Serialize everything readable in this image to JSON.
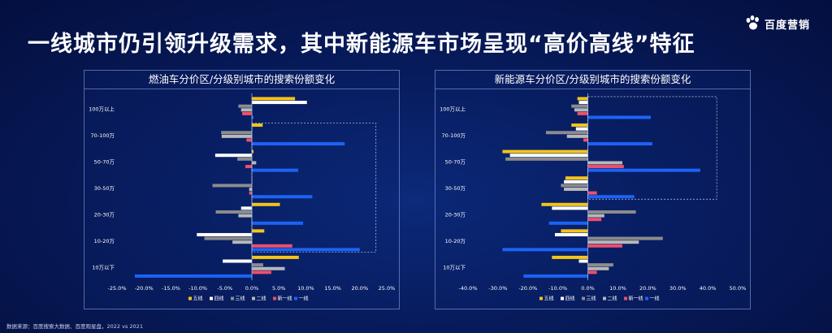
{
  "header": {
    "headline": "一线城市仍引领升级需求，其中新能源车市场呈现“高价高线”特征",
    "brand": "百度营销"
  },
  "footnote": "数据来源：百度搜索大数据、百度观星盘，2022 vs 2021",
  "colors": {
    "五线": "#f5c518",
    "四线": "#ffffff",
    "三线": "#8c8c8c",
    "二线": "#b8b8b8",
    "新一线": "#ef4f6b",
    "一线": "#1c63f5"
  },
  "chart_data": [
    {
      "type": "bar",
      "orientation": "horizontal",
      "title": "燃油车分价区/分级别城市的搜索份额变化",
      "categories": [
        "100万以上",
        "70-100万",
        "50-70万",
        "30-50万",
        "20-30万",
        "10-20万",
        "10万以下"
      ],
      "xlim": [
        -0.25,
        0.25
      ],
      "xticks": [
        "-25.0%",
        "-20.0%",
        "-15.0%",
        "-10.0%",
        "-5.0%",
        "0.0%",
        "5.0%",
        "10.0%",
        "15.0%",
        "20.0%",
        "25.0%"
      ],
      "legend_position": "bottom",
      "highlight_box": {
        "x_range": [
          0,
          0.23
        ],
        "categories": [
          "70-100万",
          "10-20万"
        ]
      },
      "series": [
        {
          "name": "五线",
          "values": [
            0.08,
            0.02,
            0.003,
            0.0,
            0.052,
            0.023,
            0.087
          ]
        },
        {
          "name": "四线",
          "values": [
            0.102,
            0.0,
            -0.068,
            0.0,
            -0.02,
            -0.102,
            -0.054
          ]
        },
        {
          "name": "三线",
          "values": [
            -0.025,
            -0.057,
            -0.027,
            -0.073,
            -0.067,
            -0.088,
            0.021
          ]
        },
        {
          "name": "二线",
          "values": [
            -0.02,
            -0.056,
            0.008,
            -0.005,
            -0.025,
            -0.036,
            0.061
          ]
        },
        {
          "name": "新一线",
          "values": [
            -0.018,
            -0.01,
            -0.012,
            -0.005,
            0.0,
            0.075,
            0.036
          ]
        },
        {
          "name": "一线",
          "values": [
            0.003,
            0.172,
            0.086,
            0.112,
            0.095,
            0.2,
            -0.217
          ]
        }
      ]
    },
    {
      "type": "bar",
      "orientation": "horizontal",
      "title": "新能源车分价区/分级别城市的搜索份额变化",
      "categories": [
        "100万以上",
        "70-100万",
        "50-70万",
        "30-50万",
        "20-30万",
        "10-20万",
        "10万以下"
      ],
      "xlim": [
        -0.4,
        0.5
      ],
      "xticks": [
        "-40.0%",
        "-30.0%",
        "-20.0%",
        "-10.0%",
        "0.0%",
        "10.0%",
        "20.0%",
        "30.0%",
        "40.0%",
        "50.0%"
      ],
      "legend_position": "bottom",
      "highlight_box": {
        "x_range": [
          0,
          0.43
        ],
        "categories": [
          "100万以上",
          "30-50万"
        ]
      },
      "series": [
        {
          "name": "五线",
          "values": [
            -0.035,
            -0.055,
            -0.285,
            -0.075,
            -0.155,
            -0.09,
            -0.12
          ]
        },
        {
          "name": "四线",
          "values": [
            -0.03,
            -0.04,
            -0.26,
            -0.08,
            -0.12,
            -0.11,
            -0.03
          ]
        },
        {
          "name": "三线",
          "values": [
            -0.055,
            -0.14,
            -0.275,
            -0.09,
            0.16,
            0.25,
            0.085
          ]
        },
        {
          "name": "二线",
          "values": [
            -0.045,
            -0.07,
            0.115,
            -0.08,
            0.055,
            0.17,
            0.07
          ]
        },
        {
          "name": "新一线",
          "values": [
            -0.035,
            -0.015,
            0.12,
            0.03,
            0.045,
            0.115,
            0.03
          ]
        },
        {
          "name": "一线",
          "values": [
            0.21,
            0.215,
            0.375,
            0.155,
            -0.13,
            -0.285,
            -0.215
          ]
        }
      ]
    }
  ]
}
